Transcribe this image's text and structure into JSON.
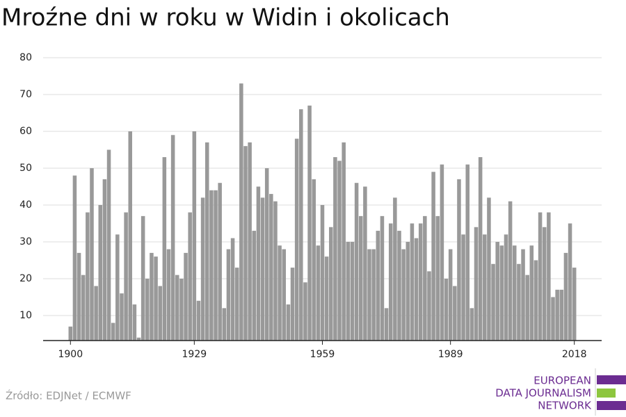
{
  "chart_data": {
    "type": "bar",
    "title": "Mroźne dni w roku w Widin i okolicach",
    "source": "Źródło: EDJNet / ECMWF",
    "logo": [
      "EUROPEAN",
      "DATA JOURNALISM",
      "NETWORK"
    ],
    "color": "#999999",
    "grid": true,
    "x": [
      1900,
      1901,
      1902,
      1903,
      1904,
      1905,
      1906,
      1907,
      1908,
      1909,
      1910,
      1911,
      1912,
      1913,
      1914,
      1915,
      1916,
      1917,
      1918,
      1919,
      1920,
      1921,
      1922,
      1923,
      1924,
      1925,
      1926,
      1927,
      1928,
      1929,
      1930,
      1931,
      1932,
      1933,
      1934,
      1935,
      1936,
      1937,
      1938,
      1939,
      1940,
      1941,
      1942,
      1943,
      1944,
      1945,
      1946,
      1947,
      1948,
      1949,
      1950,
      1951,
      1952,
      1953,
      1954,
      1955,
      1956,
      1957,
      1958,
      1959,
      1960,
      1961,
      1962,
      1963,
      1964,
      1965,
      1966,
      1967,
      1968,
      1969,
      1970,
      1971,
      1972,
      1973,
      1974,
      1975,
      1976,
      1977,
      1978,
      1979,
      1980,
      1981,
      1982,
      1983,
      1984,
      1985,
      1986,
      1987,
      1988,
      1989,
      1990,
      1991,
      1992,
      1993,
      1994,
      1995,
      1996,
      1997,
      1998,
      1999,
      2000,
      2001,
      2002,
      2003,
      2004,
      2005,
      2006,
      2007,
      2008,
      2009,
      2010,
      2011,
      2012,
      2013,
      2014,
      2015,
      2016,
      2017,
      2018
    ],
    "values": [
      7,
      48,
      27,
      21,
      38,
      50,
      18,
      40,
      47,
      55,
      8,
      32,
      16,
      38,
      60,
      13,
      4,
      37,
      20,
      27,
      26,
      18,
      53,
      28,
      59,
      21,
      20,
      27,
      38,
      60,
      14,
      42,
      57,
      44,
      44,
      46,
      12,
      28,
      31,
      23,
      73,
      56,
      57,
      33,
      45,
      42,
      50,
      43,
      41,
      29,
      28,
      13,
      23,
      58,
      66,
      19,
      67,
      47,
      29,
      40,
      26,
      34,
      53,
      52,
      57,
      30,
      30,
      46,
      37,
      45,
      28,
      28,
      33,
      37,
      12,
      35,
      42,
      33,
      28,
      30,
      35,
      31,
      35,
      37,
      22,
      49,
      37,
      51,
      20,
      28,
      18,
      47,
      32,
      51,
      12,
      34,
      53,
      32,
      42,
      24,
      30,
      29,
      32,
      41,
      29,
      24,
      28,
      21,
      29,
      25,
      38,
      34,
      38,
      15,
      17,
      17,
      27,
      35,
      23
    ],
    "xlim": [
      1893.6,
      2024.4
    ],
    "xticks": [
      1900,
      1929,
      1959,
      1989,
      2018
    ],
    "ylim": [
      3.2,
      80
    ],
    "yticks": [
      10,
      20,
      30,
      40,
      50,
      60,
      70,
      80
    ]
  }
}
